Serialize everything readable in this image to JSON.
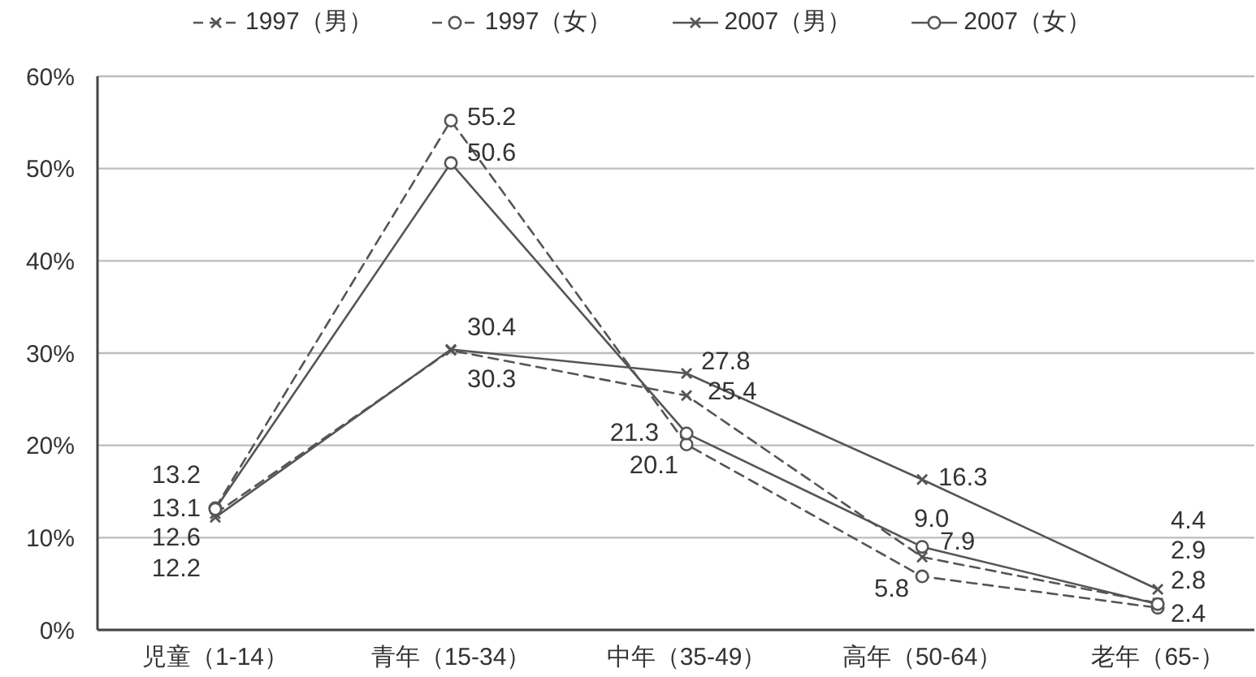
{
  "chart_data": {
    "type": "line",
    "categories": [
      "児童（1-14）",
      "青年（15-34）",
      "中年（35-49）",
      "高年（50-64）",
      "老年（65-）"
    ],
    "series": [
      {
        "name": "1997（男）",
        "color": "#555555",
        "line_style": "dashed",
        "marker": "cross",
        "values": [
          12.6,
          30.3,
          25.4,
          7.9,
          2.9
        ],
        "value_labels": [
          "12.6",
          "30.3",
          "25.4",
          "7.9",
          "2.9"
        ]
      },
      {
        "name": "1997（女）",
        "color": "#555555",
        "line_style": "dashed",
        "marker": "circle",
        "values": [
          13.2,
          55.2,
          20.1,
          5.8,
          2.4
        ],
        "value_labels": [
          "13.2",
          "55.2",
          "20.1",
          "5.8",
          "2.4"
        ]
      },
      {
        "name": "2007（男）",
        "color": "#555555",
        "line_style": "solid",
        "marker": "cross",
        "values": [
          12.2,
          30.4,
          27.8,
          16.3,
          4.4
        ],
        "value_labels": [
          "12.2",
          "30.4",
          "27.8",
          "16.3",
          "4.4"
        ]
      },
      {
        "name": "2007（女）",
        "color": "#555555",
        "line_style": "solid",
        "marker": "circle",
        "values": [
          13.1,
          50.6,
          21.3,
          9.0,
          2.8
        ],
        "value_labels": [
          "13.1",
          "50.6",
          "21.3",
          "9.0",
          "2.8"
        ]
      }
    ],
    "ylim": [
      0,
      60
    ],
    "yticks": [
      {
        "value": 0,
        "label": "0%"
      },
      {
        "value": 10,
        "label": "10%"
      },
      {
        "value": 20,
        "label": "20%"
      },
      {
        "value": 30,
        "label": "30%"
      },
      {
        "value": 40,
        "label": "40%"
      },
      {
        "value": 50,
        "label": "50%"
      },
      {
        "value": 60,
        "label": "60%"
      }
    ],
    "grid": "y",
    "legend": "top"
  }
}
